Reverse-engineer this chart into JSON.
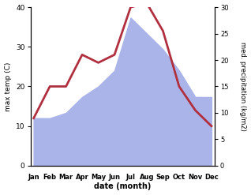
{
  "months": [
    "Jan",
    "Feb",
    "Mar",
    "Apr",
    "May",
    "Jun",
    "Jul",
    "Aug",
    "Sep",
    "Oct",
    "Nov",
    "Dec"
  ],
  "month_indices": [
    0,
    1,
    2,
    3,
    4,
    5,
    6,
    7,
    8,
    9,
    10,
    11
  ],
  "temp": [
    12,
    20,
    20,
    28,
    26,
    28,
    40,
    41,
    34,
    20,
    14,
    10
  ],
  "precip": [
    9,
    9,
    10,
    13,
    15,
    18,
    28,
    25,
    22,
    18,
    13,
    13
  ],
  "temp_color": "#b03040",
  "precip_color": "#aab4e8",
  "precip_fill_alpha": 1.0,
  "temp_ylim": [
    0,
    40
  ],
  "precip_ylim": [
    0,
    30
  ],
  "temp_yticks": [
    0,
    10,
    20,
    30,
    40
  ],
  "precip_yticks": [
    0,
    5,
    10,
    15,
    20,
    25,
    30
  ],
  "xlabel": "date (month)",
  "ylabel_left": "max temp (C)",
  "ylabel_right": "med. precipitation (kg/m2)",
  "temp_linewidth": 2.0,
  "bg_color": "#ffffff",
  "figsize": [
    3.18,
    2.47
  ],
  "dpi": 100
}
